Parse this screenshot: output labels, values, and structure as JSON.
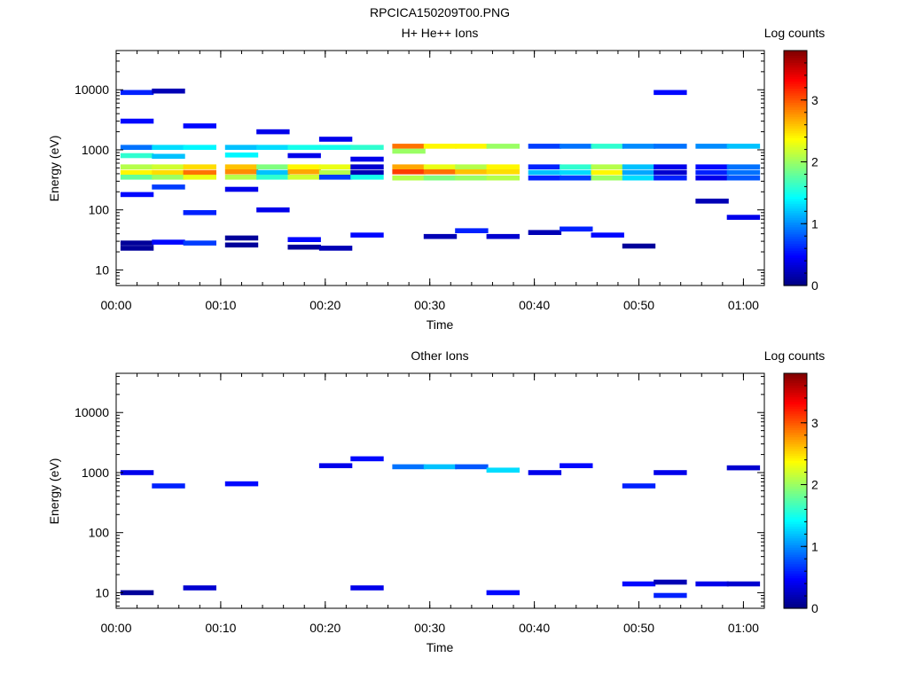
{
  "figure_title": "RPCICA150209T00.PNG",
  "colormap": [
    "#00007f",
    "#0000ff",
    "#007fff",
    "#00ffff",
    "#7fff7f",
    "#ffff00",
    "#ff7f00",
    "#ff0000",
    "#7f0000"
  ],
  "chart_data": [
    {
      "type": "heatmap",
      "title": "H+ He++ Ions",
      "xlabel": "Time",
      "ylabel": "Energy (eV)",
      "x_scale": "time",
      "y_scale": "log",
      "xlim": [
        "00:00",
        "01:02"
      ],
      "ylim": [
        5.5,
        45000
      ],
      "x_ticks": [
        "00:00",
        "00:10",
        "00:20",
        "00:30",
        "00:40",
        "00:50",
        "01:00"
      ],
      "y_ticks": [
        "10",
        "100",
        "1000",
        "10000"
      ],
      "colorbar": {
        "label": "Log counts",
        "range": [
          0,
          3.8
        ],
        "ticks": [
          "0",
          "1",
          "2",
          "3"
        ]
      },
      "time_columns": [
        "00:02",
        "00:05",
        "00:08",
        "00:12",
        "00:15",
        "00:18",
        "00:21",
        "00:24",
        "00:28",
        "00:31",
        "00:34",
        "00:37",
        "00:41",
        "00:44",
        "00:47",
        "00:50",
        "00:53",
        "00:57",
        "01:00"
      ],
      "grid": false,
      "cells": [
        [
          "00:02",
          1100,
          0.9
        ],
        [
          "00:02",
          800,
          1.6
        ],
        [
          "00:02",
          520,
          2.1
        ],
        [
          "00:02",
          420,
          2.4
        ],
        [
          "00:02",
          350,
          1.8
        ],
        [
          "00:02",
          28,
          0.1
        ],
        [
          "00:02",
          23,
          0.1
        ],
        [
          "00:02",
          9000,
          0.6
        ],
        [
          "00:02",
          3000,
          0.5
        ],
        [
          "00:02",
          180,
          0.5
        ],
        [
          "00:05",
          1100,
          1.3
        ],
        [
          "00:05",
          780,
          1.2
        ],
        [
          "00:05",
          520,
          2.2
        ],
        [
          "00:05",
          420,
          2.5
        ],
        [
          "00:05",
          350,
          2.0
        ],
        [
          "00:05",
          29,
          0.5
        ],
        [
          "00:05",
          9500,
          0.2
        ],
        [
          "00:05",
          240,
          0.7
        ],
        [
          "00:08",
          1100,
          1.4
        ],
        [
          "00:08",
          520,
          2.5
        ],
        [
          "00:08",
          420,
          2.9
        ],
        [
          "00:08",
          350,
          2.3
        ],
        [
          "00:08",
          28,
          0.7
        ],
        [
          "00:08",
          90,
          0.6
        ],
        [
          "00:08",
          2500,
          0.5
        ],
        [
          "00:12",
          1100,
          1.2
        ],
        [
          "00:12",
          820,
          1.4
        ],
        [
          "00:12",
          520,
          2.6
        ],
        [
          "00:12",
          430,
          2.8
        ],
        [
          "00:12",
          350,
          2.1
        ],
        [
          "00:12",
          34,
          0.1
        ],
        [
          "00:12",
          26,
          0.1
        ],
        [
          "00:12",
          220,
          0.4
        ],
        [
          "00:15",
          1100,
          1.3
        ],
        [
          "00:15",
          520,
          1.9
        ],
        [
          "00:15",
          420,
          1.2
        ],
        [
          "00:15",
          350,
          1.6
        ],
        [
          "00:15",
          100,
          0.4
        ],
        [
          "00:15",
          2000,
          0.4
        ],
        [
          "00:18",
          1100,
          1.5
        ],
        [
          "00:18",
          800,
          0.4
        ],
        [
          "00:18",
          520,
          2.4
        ],
        [
          "00:18",
          430,
          2.7
        ],
        [
          "00:18",
          350,
          2.2
        ],
        [
          "00:18",
          32,
          0.5
        ],
        [
          "00:18",
          24,
          0.1
        ],
        [
          "00:21",
          1100,
          1.5
        ],
        [
          "00:21",
          520,
          2.3
        ],
        [
          "00:21",
          420,
          2.1
        ],
        [
          "00:21",
          350,
          0.7
        ],
        [
          "00:21",
          23,
          0.2
        ],
        [
          "00:21",
          1500,
          0.4
        ],
        [
          "00:24",
          1100,
          1.6
        ],
        [
          "00:24",
          520,
          0.3
        ],
        [
          "00:24",
          420,
          0.2
        ],
        [
          "00:24",
          350,
          1.5
        ],
        [
          "00:24",
          38,
          0.5
        ],
        [
          "00:24",
          700,
          0.4
        ],
        [
          "00:28",
          1150,
          2.9
        ],
        [
          "00:28",
          950,
          2.0
        ],
        [
          "00:28",
          520,
          2.7
        ],
        [
          "00:28",
          430,
          3.1
        ],
        [
          "00:28",
          340,
          2.1
        ],
        [
          "00:31",
          1150,
          2.4
        ],
        [
          "00:31",
          520,
          2.3
        ],
        [
          "00:31",
          430,
          2.9
        ],
        [
          "00:31",
          340,
          1.9
        ],
        [
          "00:31",
          36,
          0.2
        ],
        [
          "00:34",
          1150,
          2.4
        ],
        [
          "00:34",
          520,
          2.1
        ],
        [
          "00:34",
          430,
          2.6
        ],
        [
          "00:34",
          340,
          2.0
        ],
        [
          "00:34",
          45,
          0.6
        ],
        [
          "00:37",
          1150,
          2.0
        ],
        [
          "00:37",
          520,
          2.4
        ],
        [
          "00:37",
          430,
          2.5
        ],
        [
          "00:37",
          340,
          2.1
        ],
        [
          "00:37",
          36,
          0.3
        ],
        [
          "00:41",
          1150,
          0.7
        ],
        [
          "00:41",
          520,
          0.6
        ],
        [
          "00:41",
          420,
          1.2
        ],
        [
          "00:41",
          340,
          0.6
        ],
        [
          "00:41",
          42,
          0.2
        ],
        [
          "00:44",
          1150,
          0.9
        ],
        [
          "00:44",
          520,
          1.6
        ],
        [
          "00:44",
          420,
          1.3
        ],
        [
          "00:44",
          340,
          0.7
        ],
        [
          "00:44",
          48,
          0.6
        ],
        [
          "00:47",
          1150,
          1.6
        ],
        [
          "00:47",
          520,
          2.1
        ],
        [
          "00:47",
          420,
          2.4
        ],
        [
          "00:47",
          340,
          2.0
        ],
        [
          "00:47",
          38,
          0.5
        ],
        [
          "00:50",
          1150,
          1.0
        ],
        [
          "00:50",
          520,
          1.2
        ],
        [
          "00:50",
          420,
          1.1
        ],
        [
          "00:50",
          340,
          1.3
        ],
        [
          "00:50",
          25,
          0.1
        ],
        [
          "00:53",
          1150,
          0.9
        ],
        [
          "00:53",
          520,
          0.4
        ],
        [
          "00:53",
          420,
          0.3
        ],
        [
          "00:53",
          340,
          0.6
        ],
        [
          "00:53",
          9000,
          0.5
        ],
        [
          "00:57",
          1150,
          1.0
        ],
        [
          "00:57",
          520,
          0.5
        ],
        [
          "00:57",
          420,
          0.6
        ],
        [
          "00:57",
          340,
          0.4
        ],
        [
          "00:57",
          140,
          0.2
        ],
        [
          "01:00",
          1150,
          1.2
        ],
        [
          "01:00",
          520,
          0.9
        ],
        [
          "01:00",
          420,
          0.9
        ],
        [
          "01:00",
          340,
          0.8
        ],
        [
          "01:00",
          75,
          0.4
        ]
      ]
    },
    {
      "type": "heatmap",
      "title": "Other Ions",
      "xlabel": "Time",
      "ylabel": "Energy (eV)",
      "x_scale": "time",
      "y_scale": "log",
      "xlim": [
        "00:00",
        "01:02"
      ],
      "ylim": [
        5.5,
        45000
      ],
      "x_ticks": [
        "00:00",
        "00:10",
        "00:20",
        "00:30",
        "00:40",
        "00:50",
        "01:00"
      ],
      "y_ticks": [
        "10",
        "100",
        "1000",
        "10000"
      ],
      "colorbar": {
        "label": "Log counts",
        "range": [
          0,
          3.8
        ],
        "ticks": [
          "0",
          "1",
          "2",
          "3"
        ]
      },
      "time_columns": [
        "00:02",
        "00:05",
        "00:08",
        "00:12",
        "00:15",
        "00:18",
        "00:21",
        "00:24",
        "00:28",
        "00:31",
        "00:34",
        "00:37",
        "00:41",
        "00:44",
        "00:47",
        "00:50",
        "00:53",
        "00:57",
        "01:00"
      ],
      "grid": false,
      "cells": [
        [
          "00:02",
          10,
          0.1
        ],
        [
          "00:08",
          12,
          0.3
        ],
        [
          "00:24",
          12,
          0.4
        ],
        [
          "00:37",
          10,
          0.5
        ],
        [
          "00:50",
          14,
          0.5
        ],
        [
          "00:53",
          9,
          0.6
        ],
        [
          "00:53",
          15,
          0.2
        ],
        [
          "00:57",
          14,
          0.4
        ],
        [
          "01:00",
          14,
          0.3
        ],
        [
          "00:02",
          1000,
          0.4
        ],
        [
          "00:05",
          600,
          0.6
        ],
        [
          "00:12",
          650,
          0.5
        ],
        [
          "00:21",
          1300,
          0.4
        ],
        [
          "00:24",
          1700,
          0.5
        ],
        [
          "00:28",
          1250,
          0.9
        ],
        [
          "00:31",
          1250,
          1.2
        ],
        [
          "00:34",
          1250,
          0.8
        ],
        [
          "00:37",
          1100,
          1.3
        ],
        [
          "00:41",
          1000,
          0.4
        ],
        [
          "00:44",
          1300,
          0.5
        ],
        [
          "00:50",
          600,
          0.6
        ],
        [
          "00:53",
          1000,
          0.4
        ],
        [
          "01:00",
          1200,
          0.3
        ]
      ]
    }
  ]
}
